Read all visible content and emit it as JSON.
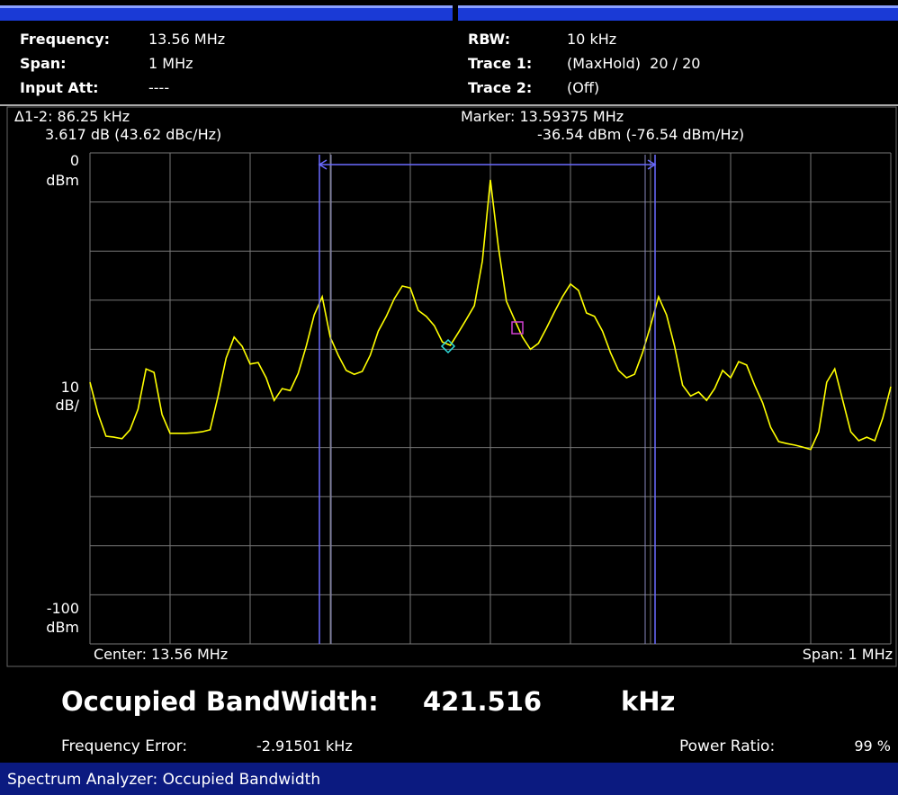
{
  "settings": [
    {
      "label": "Frequency:",
      "value": "13.56 MHz"
    },
    {
      "label": "Span:",
      "value": "1 MHz"
    },
    {
      "label": "Input Att:",
      "value": "----"
    }
  ],
  "traces": [
    {
      "label": "RBW:",
      "value": "10 kHz",
      "color": "#ffffff"
    },
    {
      "label": "Trace 1:",
      "value": "(MaxHold)  20 / 20",
      "color": "#ffff00"
    },
    {
      "label": "Trace 2:",
      "value": "(Off)",
      "color": "#00ff00"
    }
  ],
  "delta_marker": {
    "line1": "Δ1-2: 86.25 kHz",
    "line2": "3.617 dB (43.62 dBc/Hz)"
  },
  "marker": {
    "line1": "Marker: 13.59375 MHz",
    "line2": "-36.54 dBm (-76.54 dBm/Hz)"
  },
  "chart_data": {
    "type": "line",
    "ylim": [
      -100,
      0
    ],
    "y_unit_top": "dBm",
    "y_scale": "10",
    "y_scale_unit": "dB/",
    "y_unit_bottom": "dBm",
    "x_left_label": "Center: 13.56 MHz",
    "x_right_label": "Span: 1 MHz",
    "color": "#ffff00",
    "grid": true,
    "values": [
      -46.7,
      -53.1,
      -57.7,
      -57.9,
      -58.2,
      -56.4,
      -52.2,
      -44.0,
      -44.7,
      -53.3,
      -57.1,
      -57.1,
      -57.1,
      -57.0,
      -56.8,
      -56.4,
      -49.5,
      -41.8,
      -37.5,
      -39.4,
      -43.0,
      -42.7,
      -45.8,
      -50.4,
      -48.0,
      -48.4,
      -44.9,
      -39.4,
      -33.0,
      -29.3,
      -37.5,
      -41.2,
      -44.3,
      -45.1,
      -44.5,
      -41.2,
      -36.3,
      -33.3,
      -29.7,
      -27.1,
      -27.5,
      -32.1,
      -33.3,
      -35.2,
      -38.5,
      -39.2,
      -36.6,
      -33.9,
      -31.1,
      -22.0,
      -5.5,
      -19.2,
      -30.2,
      -33.9,
      -37.5,
      -40.0,
      -38.8,
      -35.7,
      -32.4,
      -29.3,
      -26.7,
      -28.0,
      -32.6,
      -33.3,
      -36.3,
      -40.7,
      -44.3,
      -45.8,
      -45.1,
      -40.7,
      -35.2,
      -29.3,
      -33.0,
      -39.4,
      -47.3,
      -49.5,
      -48.7,
      -50.4,
      -48.0,
      -44.3,
      -45.8,
      -42.5,
      -43.2,
      -47.3,
      -50.9,
      -55.9,
      -58.8,
      -59.2,
      -59.5,
      -59.9,
      -60.4,
      -56.8,
      -46.7,
      -44.0,
      -50.4,
      -56.8,
      -58.6,
      -57.9,
      -58.6,
      -54.0,
      -47.6
    ]
  },
  "result": {
    "title": "Occupied BandWidth:",
    "value": "421.516",
    "unit": "kHz"
  },
  "details": [
    {
      "label": "Frequency Error:",
      "value": "-2.91501 kHz"
    },
    {
      "label": "Power Ratio:",
      "value": "99 %"
    }
  ],
  "footer": "Spectrum Analyzer: Occupied Bandwidth"
}
